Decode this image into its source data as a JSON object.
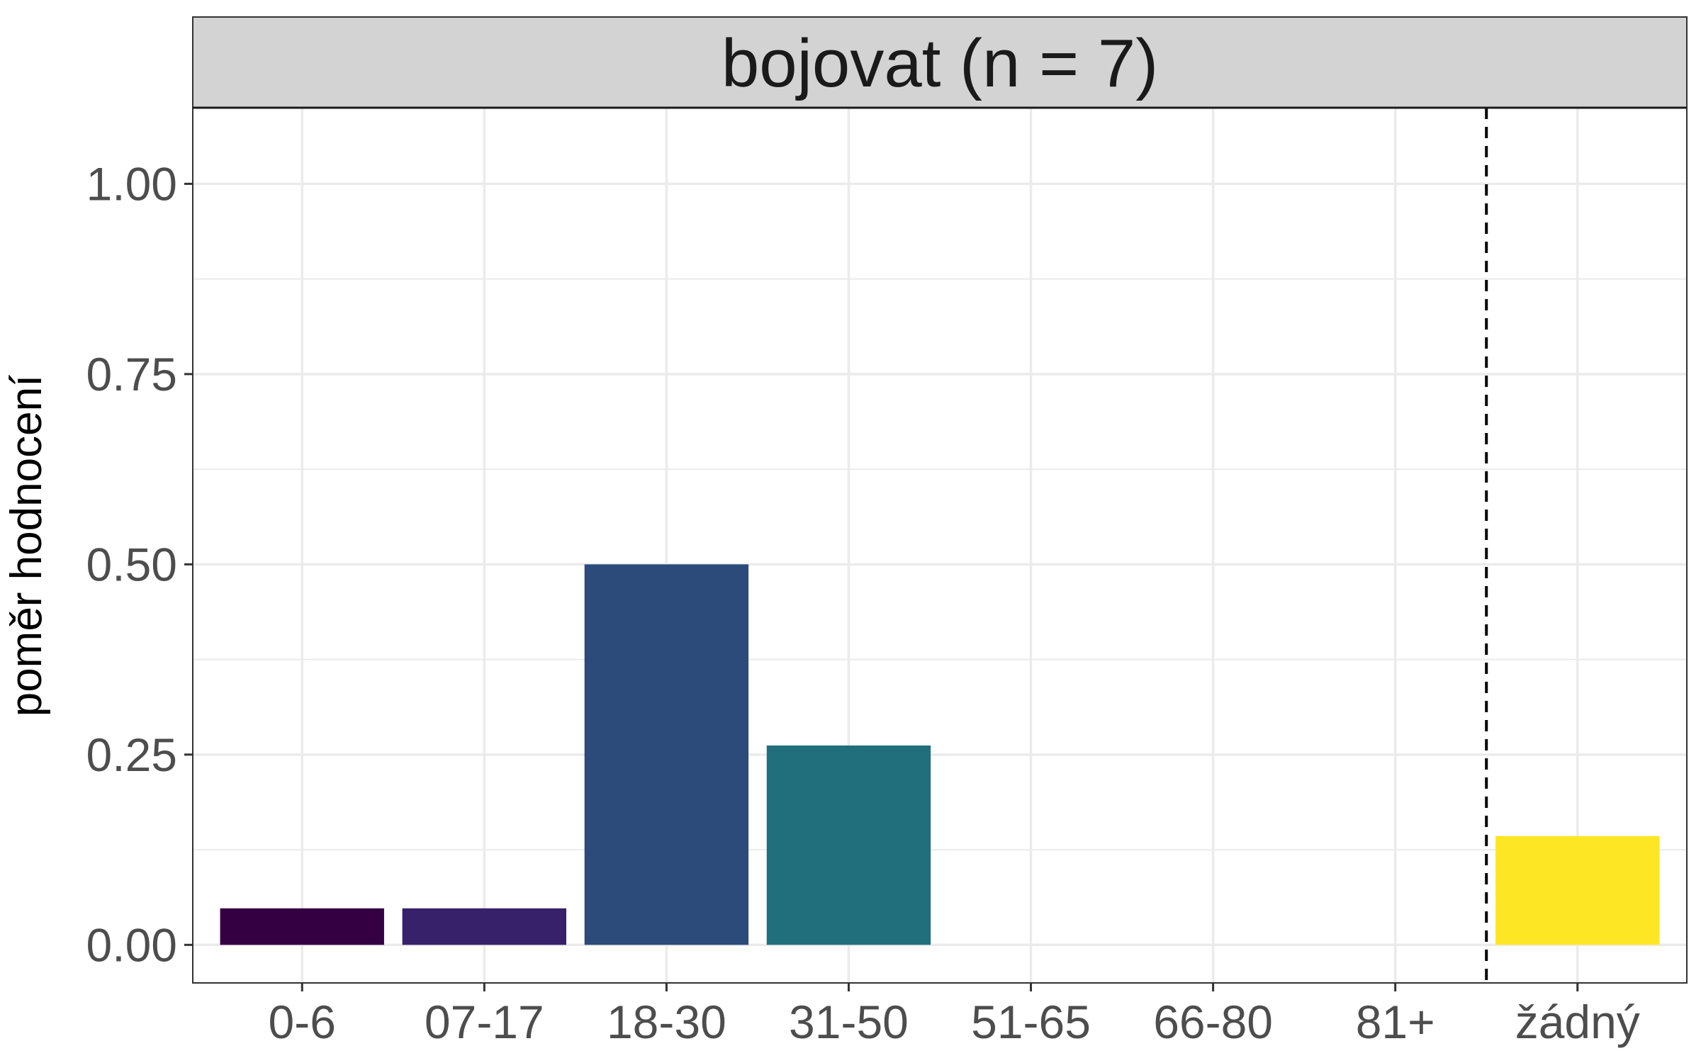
{
  "chart_data": {
    "type": "bar",
    "title": "bojovat (n = 7)",
    "xlabel": "",
    "ylabel": "poměr hodnocení",
    "categories": [
      "0-6",
      "07-17",
      "18-30",
      "31-50",
      "51-65",
      "66-80",
      "81+",
      "žádný"
    ],
    "values": [
      0.048,
      0.048,
      0.5,
      0.262,
      0,
      0,
      0,
      0.143
    ],
    "colors": [
      "#340042",
      "#37216B",
      "#2C4A7A",
      "#216F7C",
      "#1F9A8A",
      "#4AC16D",
      "#A0DA39",
      "#FDE725"
    ],
    "ylim": [
      -0.05,
      1.1
    ],
    "yticks": [
      0,
      0.25,
      0.5,
      0.75,
      1
    ],
    "ytick_labels": [
      "0.00",
      "0.25",
      "0.50",
      "0.75",
      "1.00"
    ],
    "reference_line": {
      "between": [
        "81+",
        "žádný"
      ],
      "style": "dashed",
      "color": "#000000"
    },
    "grid": true,
    "legend": "none"
  }
}
